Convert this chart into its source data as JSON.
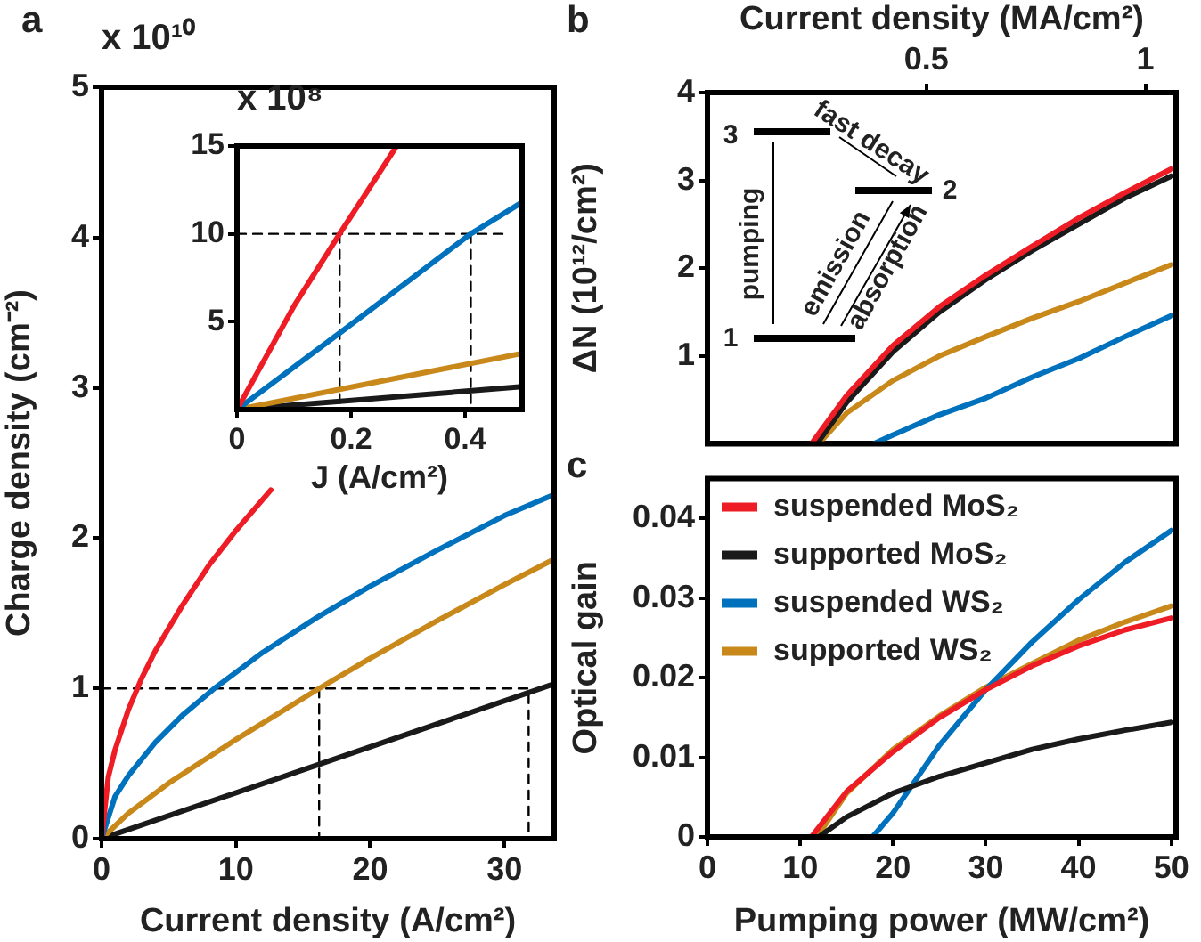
{
  "chart_data": [
    {
      "type": "line",
      "title": "a",
      "xlabel": "Current density (A/cm²)",
      "ylabel": "Charge density (cm⁻²)",
      "annotations": [
        "x 10¹⁰"
      ],
      "xlim": [
        0,
        33.7
      ],
      "xticks": [
        0,
        10,
        20,
        30
      ],
      "ylim": [
        0,
        5
      ],
      "yticks": [
        0,
        1,
        2,
        3,
        4,
        5
      ],
      "grid": false,
      "marker": "none",
      "series": [
        {
          "color": "#ee1c25",
          "x": [
            0,
            0.5,
            1,
            2,
            3,
            4,
            6,
            8,
            10,
            12.6
          ],
          "values": [
            0,
            0.41,
            0.59,
            0.86,
            1.07,
            1.25,
            1.55,
            1.82,
            2.05,
            2.32
          ]
        },
        {
          "color": "#0072bd",
          "x": [
            0,
            1,
            2,
            4,
            6,
            8.4,
            12,
            16,
            20,
            25,
            30,
            33.7
          ],
          "values": [
            0,
            0.28,
            0.42,
            0.64,
            0.82,
            1,
            1.24,
            1.47,
            1.68,
            1.92,
            2.15,
            2.29
          ]
        },
        {
          "color": "#c8891a",
          "x": [
            0,
            2,
            5,
            10,
            16.2,
            20,
            25,
            30,
            33.7
          ],
          "values": [
            0,
            0.17,
            0.37,
            0.66,
            1,
            1.2,
            1.45,
            1.69,
            1.86
          ]
        },
        {
          "color": "#1a1a1a",
          "x": [
            0,
            33.7
          ],
          "values": [
            0,
            1.03
          ]
        },
        {
          "color": "#000000",
          "line_style": "dashed",
          "x": [
            0,
            31.8,
            31.8
          ],
          "values": [
            1,
            1,
            0
          ]
        },
        {
          "color": "#000000",
          "line_style": "dashed",
          "x": [
            16.2,
            16.2
          ],
          "values": [
            1,
            0
          ]
        }
      ]
    },
    {
      "type": "line",
      "xlabel": "J (A/cm²)",
      "annotations": [
        "x 10⁸"
      ],
      "xlim": [
        0,
        0.5
      ],
      "xticks": [
        0,
        0.2,
        0.4
      ],
      "ylim": [
        0,
        15
      ],
      "yticks": [
        5,
        10,
        15
      ],
      "grid": false,
      "marker": "none",
      "series": [
        {
          "color": "#ee1c25",
          "x": [
            0,
            0.1,
            0.18,
            0.28
          ],
          "values": [
            0,
            5.9,
            10,
            15
          ]
        },
        {
          "color": "#0072bd",
          "x": [
            0,
            0.19,
            0.41,
            0.5
          ],
          "values": [
            0,
            4.6,
            10,
            11.8
          ]
        },
        {
          "color": "#c8891a",
          "x": [
            0,
            0.5
          ],
          "values": [
            0,
            3.2
          ]
        },
        {
          "color": "#1a1a1a",
          "x": [
            0,
            0.5
          ],
          "values": [
            0,
            1.3
          ]
        },
        {
          "color": "#000000",
          "line_style": "dashed",
          "x": [
            0,
            0.475
          ],
          "values": [
            10,
            10
          ]
        },
        {
          "color": "#000000",
          "line_style": "dashed",
          "x": [
            0.18,
            0.18
          ],
          "values": [
            10,
            0
          ]
        },
        {
          "color": "#000000",
          "line_style": "dashed",
          "x": [
            0.41,
            0.41
          ],
          "values": [
            10,
            0
          ]
        }
      ]
    },
    {
      "type": "line",
      "title": "b",
      "ylabel": "ΔN (10¹²/cm²)",
      "x2label": "Current density (MA/cm²)",
      "annotations": [
        "3",
        "2",
        "1",
        "pumping",
        "fast decay",
        "emission",
        "absorption"
      ],
      "xlim": [
        0,
        50.5
      ],
      "x2lim": [
        0,
        1.07
      ],
      "x2ticks": [
        0.5,
        1
      ],
      "ylim": [
        0,
        4
      ],
      "yticks": [
        1,
        2,
        3,
        4
      ],
      "tick_labels": "y",
      "grid": false,
      "marker": "none",
      "series": [
        {
          "color": "#ee1c25",
          "x": [
            11.2,
            15,
            20,
            25,
            30,
            35,
            40,
            45,
            50
          ],
          "values": [
            0,
            0.55,
            1.12,
            1.56,
            1.92,
            2.25,
            2.57,
            2.86,
            3.13
          ]
        },
        {
          "color": "#1a1a1a",
          "x": [
            11.8,
            15,
            20,
            25,
            30,
            35,
            40,
            45,
            50
          ],
          "values": [
            0,
            0.47,
            1.05,
            1.5,
            1.87,
            2.2,
            2.5,
            2.8,
            3.05
          ]
        },
        {
          "color": "#0072bd",
          "x": [
            17.9,
            20,
            25,
            30,
            35,
            40,
            45,
            50
          ],
          "values": [
            0,
            0.1,
            0.33,
            0.52,
            0.76,
            0.97,
            1.22,
            1.46
          ]
        },
        {
          "color": "#c8891a",
          "x": [
            12,
            15,
            20,
            25,
            30,
            35,
            40,
            45,
            50
          ],
          "values": [
            0,
            0.35,
            0.72,
            1,
            1.22,
            1.43,
            1.62,
            1.83,
            2.04
          ]
        }
      ]
    },
    {
      "type": "line",
      "title": "c",
      "xlabel": "Pumping power (MW/cm²)",
      "ylabel": "Optical gain",
      "xlim": [
        0,
        50.5
      ],
      "xticks": [
        0,
        10,
        20,
        30,
        40,
        50
      ],
      "ylim": [
        0,
        0.045
      ],
      "yticks": [
        0,
        0.01,
        0.02,
        0.03,
        0.04
      ],
      "grid": false,
      "marker": "none",
      "legend": "top left",
      "series": [
        {
          "name": "suspended MoS₂",
          "color": "#ee1c25",
          "x": [
            11.2,
            15,
            20,
            25,
            30,
            35,
            40,
            45,
            50
          ],
          "values": [
            0,
            0.0057,
            0.0107,
            0.015,
            0.0185,
            0.0215,
            0.024,
            0.026,
            0.0275
          ]
        },
        {
          "name": "supported MoS₂",
          "color": "#1a1a1a",
          "x": [
            12,
            15,
            20,
            25,
            30,
            35,
            40,
            45,
            50
          ],
          "values": [
            0,
            0.0025,
            0.0055,
            0.0076,
            0.0093,
            0.011,
            0.0123,
            0.0134,
            0.0144
          ]
        },
        {
          "name": "suspended WS₂",
          "color": "#0072bd",
          "x": [
            17.8,
            20,
            25,
            30,
            35,
            40,
            45,
            50
          ],
          "values": [
            0,
            0.003,
            0.0115,
            0.0185,
            0.0245,
            0.0298,
            0.0345,
            0.0385
          ]
        },
        {
          "name": "supported WS₂",
          "color": "#c8891a",
          "x": [
            11.8,
            15,
            20,
            25,
            30,
            35,
            40,
            45,
            50
          ],
          "values": [
            0,
            0.0055,
            0.011,
            0.0152,
            0.0188,
            0.0218,
            0.0247,
            0.027,
            0.029
          ]
        }
      ]
    }
  ]
}
